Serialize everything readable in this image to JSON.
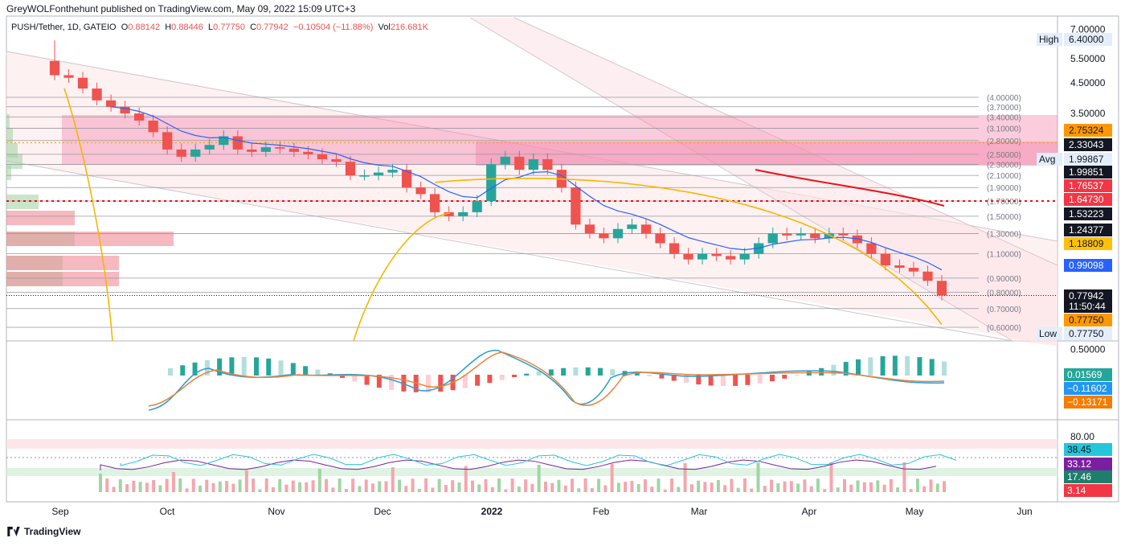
{
  "header": "GreyWOLFonthehunt published on TradingView.com, May 09, 2022 15:09 UTC+3",
  "legend": {
    "symbol": "PUSH/Tether, 1D, GATEIO",
    "open_label": "O",
    "open": "0.88142",
    "high_label": "H",
    "high": "0.88446",
    "low_label": "L",
    "low": "0.77750",
    "close_label": "C",
    "close": "0.77942",
    "change": "−0.10504 (−11.88%)",
    "vol_label": "Vol",
    "vol": "216.681K"
  },
  "footer": {
    "brand": "TradingView"
  },
  "colors": {
    "up": "#26a69a",
    "down": "#ef5350",
    "ema_blue": "#2962ff",
    "ma_orange": "#f5b700",
    "ma_red": "#e8131a",
    "zone_red": "#f48fb1"
  },
  "chart_data": [
    {
      "type": "candlestick",
      "title": "PUSH/Tether, 1D, GATEIO",
      "x_labels": [
        "Sep",
        "Oct",
        "Nov",
        "Dec",
        "2022",
        "Feb",
        "Mar",
        "Apr",
        "May",
        "Jun"
      ],
      "y_axis": {
        "scale": "log",
        "ticks": [
          "7.00000",
          "5.50000",
          "4.50000",
          "3.50000",
          "0.50000"
        ]
      },
      "fib_levels": [
        "(4.00000)",
        "(3.70000)",
        "(3.40000)",
        "(3.10000)",
        "(2.80000)",
        "(2.50000)",
        "(2.30000)",
        "(2.10000)",
        "(1.90000)",
        "(1.70000)",
        "(1.50000)",
        "(1.30000)",
        "(1.10000)",
        "(0.90000)",
        "(0.80000)",
        "(0.70000)",
        "(0.60000)"
      ],
      "price_tags": [
        {
          "label": "High",
          "value": "6.40000"
        },
        {
          "value": "2.75324"
        },
        {
          "value": "2.33043"
        },
        {
          "label": "Avg",
          "value": "1.99867"
        },
        {
          "value": "1.99851"
        },
        {
          "value": "1.76537"
        },
        {
          "value": "1.64730"
        },
        {
          "value": "1.53223"
        },
        {
          "value": "1.24377"
        },
        {
          "value": "1.18809"
        },
        {
          "value": "0.99098"
        },
        {
          "value": "0.77942"
        },
        {
          "value": "11:50:44"
        },
        {
          "value": "0.77750"
        },
        {
          "label": "Low",
          "value": "0.77750"
        }
      ],
      "close_series": [
        4.8,
        4.7,
        4.3,
        3.9,
        3.7,
        3.5,
        3.3,
        3.0,
        2.6,
        2.45,
        2.6,
        2.7,
        2.9,
        2.6,
        2.55,
        2.65,
        2.62,
        2.55,
        2.5,
        2.4,
        2.35,
        2.1,
        2.1,
        2.15,
        2.2,
        1.9,
        1.8,
        1.55,
        1.5,
        1.55,
        1.7,
        2.3,
        2.45,
        2.2,
        2.4,
        2.2,
        1.9,
        1.4,
        1.3,
        1.25,
        1.35,
        1.4,
        1.3,
        1.2,
        1.1,
        1.05,
        1.1,
        1.08,
        1.05,
        1.1,
        1.2,
        1.3,
        1.28,
        1.3,
        1.25,
        1.3,
        1.28,
        1.2,
        1.1,
        1.0,
        0.98,
        0.95,
        0.88,
        0.78
      ]
    },
    {
      "type": "histogram",
      "title": "MACD",
      "values_shown": [
        "0.01569",
        "−0.11602",
        "−0.13171"
      ]
    },
    {
      "type": "line",
      "title": "Oscillator",
      "y_ticks": [
        "80.00"
      ],
      "values_shown": [
        "38.45",
        "33.12",
        "17.46",
        "3.14"
      ]
    }
  ]
}
